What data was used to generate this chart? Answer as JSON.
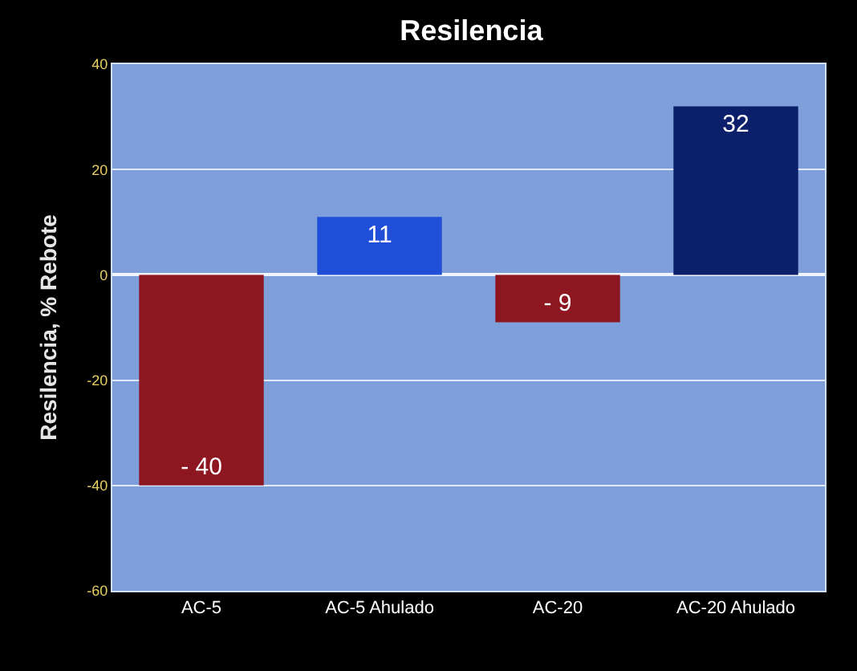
{
  "chart_data": {
    "type": "bar",
    "title": "Resilencia",
    "ylabel": "Resilencia, % Rebote",
    "categories": [
      "AC-5",
      "AC-5 Ahulado",
      "AC-20",
      "AC-20 Ahulado"
    ],
    "values": [
      -40,
      11,
      -9,
      32
    ],
    "colors": [
      "#8e1620",
      "#1f4fd8",
      "#8e1620",
      "#0c1f6a"
    ],
    "value_labels": [
      "- 40",
      "11",
      "- 9",
      "32"
    ],
    "ylim": [
      -60,
      40
    ],
    "yticks": [
      -60,
      -40,
      -20,
      0,
      20,
      40
    ],
    "grid": "y",
    "legend": false
  }
}
